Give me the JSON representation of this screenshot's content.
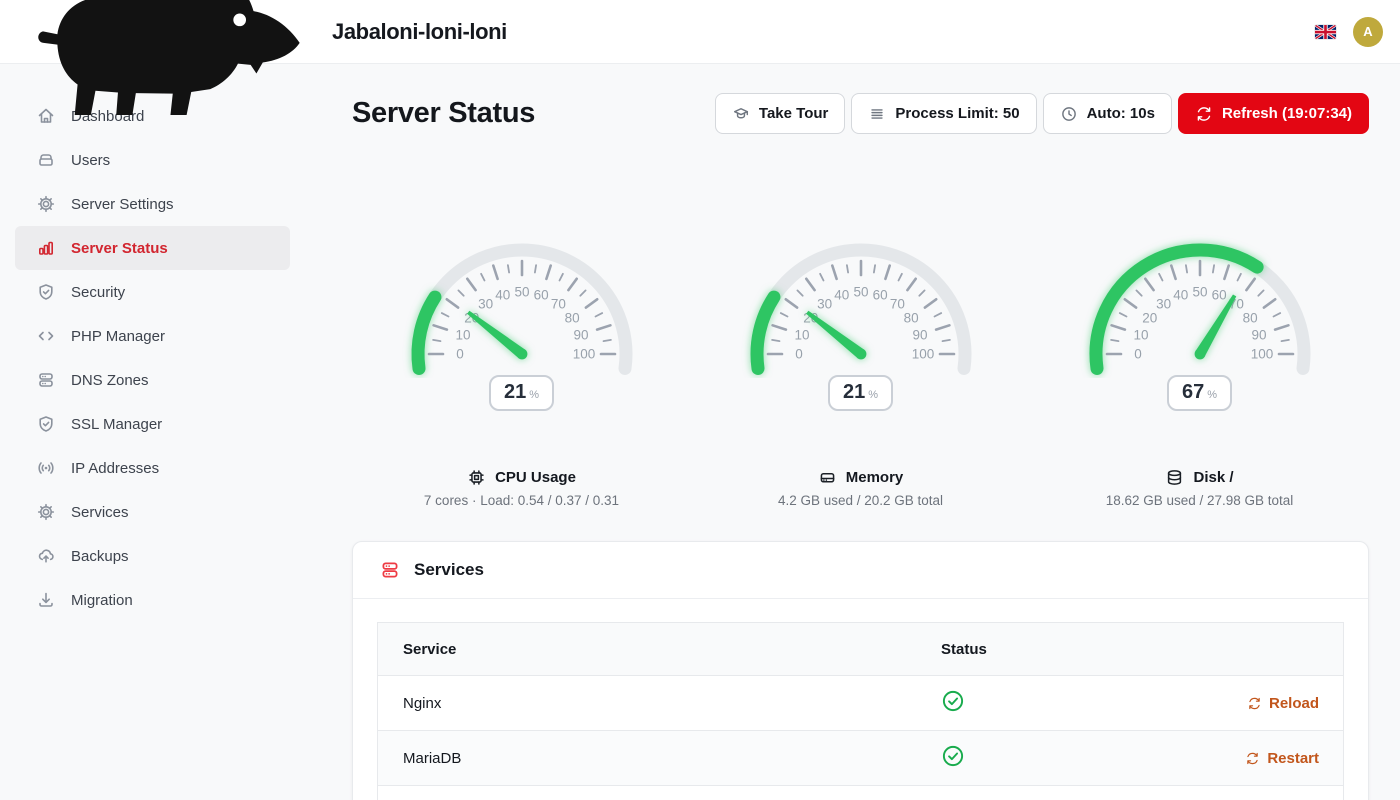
{
  "brand": {
    "name": "Jabaloni-loni-loni",
    "logo_icon": "boar-icon"
  },
  "header": {
    "language_flag_icon": "uk-flag-icon",
    "avatar_initial": "A"
  },
  "sidebar": {
    "items": [
      {
        "label": "Dashboard",
        "icon": "home-icon",
        "active": false
      },
      {
        "label": "Users",
        "icon": "users-box-icon",
        "active": false
      },
      {
        "label": "Server Settings",
        "icon": "gear-icon",
        "active": false
      },
      {
        "label": "Server Status",
        "icon": "bar-chart-icon",
        "active": true
      },
      {
        "label": "Security",
        "icon": "shield-check-icon",
        "active": false
      },
      {
        "label": "PHP Manager",
        "icon": "code-icon",
        "active": false
      },
      {
        "label": "DNS Zones",
        "icon": "server-stack-icon",
        "active": false
      },
      {
        "label": "SSL Manager",
        "icon": "shield-check-icon",
        "active": false
      },
      {
        "label": "IP Addresses",
        "icon": "broadcast-icon",
        "active": false
      },
      {
        "label": "Services",
        "icon": "gear-icon",
        "active": false
      },
      {
        "label": "Backups",
        "icon": "cloud-upload-icon",
        "active": false
      },
      {
        "label": "Migration",
        "icon": "download-icon",
        "active": false
      }
    ]
  },
  "page": {
    "title": "Server Status"
  },
  "toolbar": {
    "buttons": [
      {
        "label": "Take Tour",
        "icon": "graduation-cap-icon",
        "variant": "outline"
      },
      {
        "label": "Process Limit: 50",
        "icon": "list-lines-icon",
        "variant": "outline"
      },
      {
        "label": "Auto: 10s",
        "icon": "clock-icon",
        "variant": "outline"
      },
      {
        "label": "Refresh (19:07:34)",
        "icon": "refresh-icon",
        "variant": "danger"
      }
    ]
  },
  "chart_data": [
    {
      "type": "gauge",
      "title": "CPU Usage",
      "subtitle": "7 cores · Load: 0.54 / 0.37 / 0.31",
      "icon": "cpu-icon",
      "value": 21,
      "unit": "%",
      "min": 0,
      "max": 100,
      "major_tick_interval": 10,
      "minor_tick_interval": 5,
      "tick_labels": [
        0,
        10,
        20,
        30,
        40,
        50,
        60,
        70,
        80,
        90,
        100
      ]
    },
    {
      "type": "gauge",
      "title": "Memory",
      "subtitle": "4.2 GB used / 20.2 GB total",
      "icon": "hard-drive-icon",
      "value": 21,
      "unit": "%",
      "min": 0,
      "max": 100,
      "major_tick_interval": 10,
      "minor_tick_interval": 5,
      "tick_labels": [
        0,
        10,
        20,
        30,
        40,
        50,
        60,
        70,
        80,
        90,
        100
      ]
    },
    {
      "type": "gauge",
      "title": "Disk /",
      "subtitle": "18.62 GB used / 27.98 GB total",
      "icon": "database-icon",
      "value": 67,
      "unit": "%",
      "min": 0,
      "max": 100,
      "major_tick_interval": 10,
      "minor_tick_interval": 5,
      "tick_labels": [
        0,
        10,
        20,
        30,
        40,
        50,
        60,
        70,
        80,
        90,
        100
      ]
    }
  ],
  "services": {
    "title": "Services",
    "icon": "server-stack-icon",
    "table": {
      "columns": [
        "Service",
        "Status"
      ],
      "rows": [
        {
          "service": "Nginx",
          "status": "running",
          "status_icon": "check-circle-icon",
          "action": "Reload",
          "action_icon": "refresh-icon"
        },
        {
          "service": "MariaDB",
          "status": "running",
          "status_icon": "check-circle-icon",
          "action": "Restart",
          "action_icon": "refresh-icon"
        }
      ]
    }
  },
  "colors": {
    "accent_red": "#e30613",
    "sidebar_active_red": "#d22630",
    "gauge_green": "#2ec563",
    "gauge_track": "#e4e7ea",
    "tick_gray": "#9ca3af",
    "status_green": "#19ab4d",
    "action_orange": "#c2561c",
    "avatar_gold": "#bfa93c"
  }
}
